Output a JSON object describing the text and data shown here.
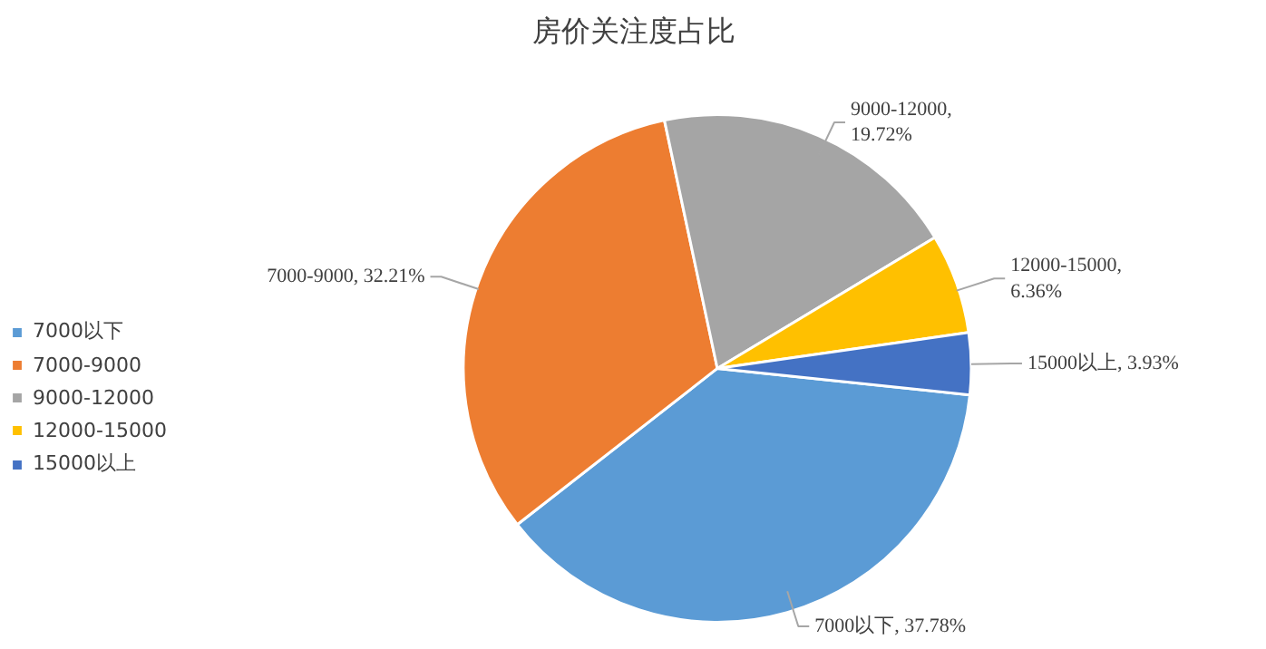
{
  "chart_data": {
    "type": "pie",
    "title": "房价关注度占比",
    "categories": [
      "7000以下",
      "7000-9000",
      "9000-12000",
      "12000-15000",
      "15000以上"
    ],
    "values": [
      37.78,
      32.21,
      19.72,
      6.36,
      3.93
    ],
    "colors": [
      "#5b9bd5",
      "#ed7d31",
      "#a5a5a5",
      "#ffc000",
      "#4472c4"
    ],
    "value_labels": [
      "7000以下, 37.78%",
      "7000-9000, 32.21%",
      "9000-12000,\n19.72%",
      "12000-15000,\n6.36%",
      "15000以上, 3.93%"
    ],
    "legend": "left"
  }
}
